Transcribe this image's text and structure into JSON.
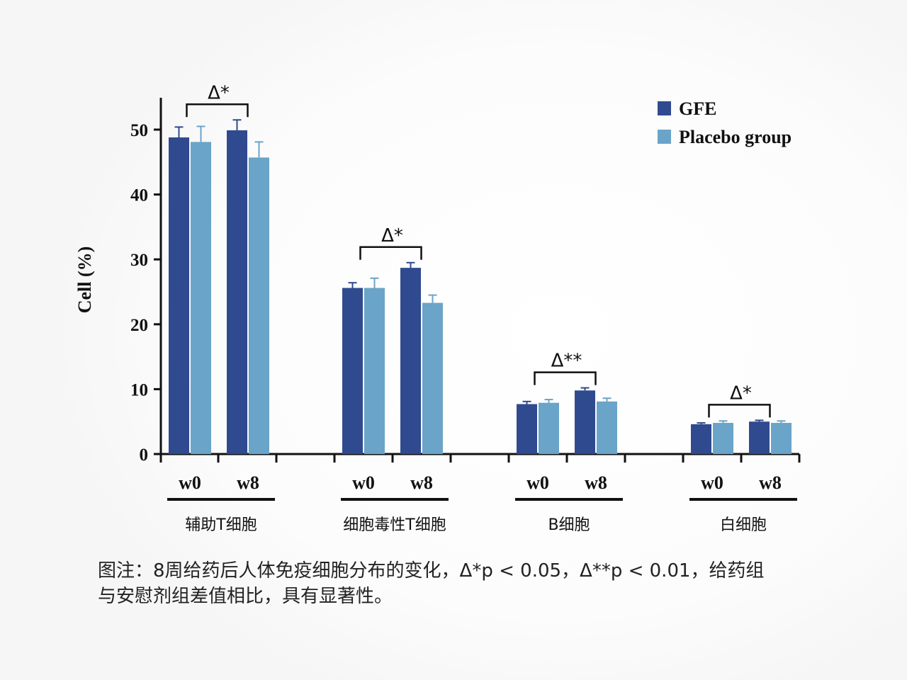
{
  "chart_data": {
    "type": "bar",
    "ylabel": "Cell (%)",
    "ylim": [
      0,
      55
    ],
    "yticks": [
      0,
      10,
      20,
      30,
      40,
      50
    ],
    "legend": {
      "position": "top-right"
    },
    "series": [
      {
        "name": "GFE",
        "color": "#2f4a8f"
      },
      {
        "name": "Placebo group",
        "color": "#6aa4c8"
      }
    ],
    "groups": [
      {
        "label": "辅助T细胞",
        "times": [
          {
            "label": "w0",
            "values": [
              48.8,
              48.1
            ],
            "errors": [
              1.6,
              2.4
            ]
          },
          {
            "label": "w8",
            "values": [
              49.9,
              45.7
            ],
            "errors": [
              1.6,
              2.4
            ]
          }
        ],
        "annotation": "Δ*"
      },
      {
        "label": "细胞毒性T细胞",
        "times": [
          {
            "label": "w0",
            "values": [
              25.6,
              25.6
            ],
            "errors": [
              0.8,
              1.5
            ]
          },
          {
            "label": "w8",
            "values": [
              28.7,
              23.3
            ],
            "errors": [
              0.8,
              1.2
            ]
          }
        ],
        "annotation": "Δ*"
      },
      {
        "label": "B细胞",
        "times": [
          {
            "label": "w0",
            "values": [
              7.7,
              7.9
            ],
            "errors": [
              0.4,
              0.5
            ]
          },
          {
            "label": "w8",
            "values": [
              9.8,
              8.1
            ],
            "errors": [
              0.4,
              0.5
            ]
          }
        ],
        "annotation": "Δ**"
      },
      {
        "label": "白细胞",
        "times": [
          {
            "label": "w0",
            "values": [
              4.6,
              4.8
            ],
            "errors": [
              0.2,
              0.3
            ]
          },
          {
            "label": "w8",
            "values": [
              5.0,
              4.8
            ],
            "errors": [
              0.2,
              0.3
            ]
          }
        ],
        "annotation": "Δ*"
      }
    ]
  },
  "caption": {
    "line1": "图注：8周给药后人体免疫细胞分布的变化，Δ*p < 0.05，Δ**p < 0.01，给药组",
    "line2": "与安慰剂组差值相比，具有显著性。"
  }
}
